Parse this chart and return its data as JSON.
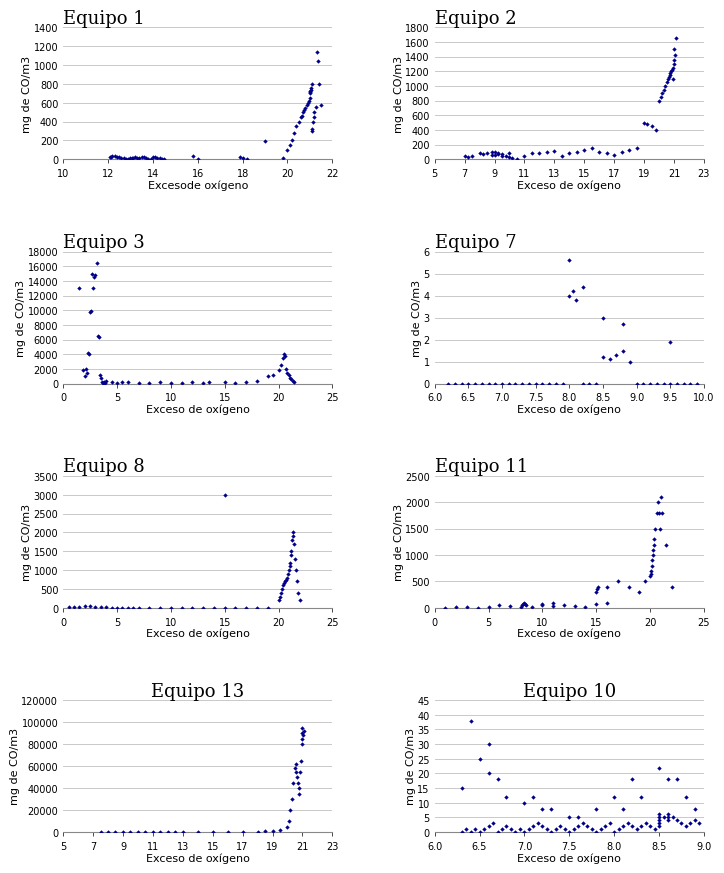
{
  "plots": [
    {
      "title": "Equipo 1",
      "title_loc": "left",
      "xlabel": "Excesode oxígeno",
      "ylabel": "mg de CO/m3",
      "xlim": [
        10,
        22
      ],
      "ylim": [
        0,
        1400
      ],
      "xticks": [
        10,
        12,
        14,
        16,
        18,
        20,
        22
      ],
      "yticks": [
        0,
        200,
        400,
        600,
        800,
        1000,
        1200,
        1400
      ],
      "x": [
        12.1,
        12.15,
        12.2,
        12.3,
        12.4,
        12.5,
        12.6,
        12.7,
        12.8,
        12.9,
        13.0,
        13.05,
        13.1,
        13.2,
        13.3,
        13.4,
        13.5,
        13.6,
        13.7,
        13.8,
        13.9,
        14.0,
        14.1,
        14.2,
        14.3,
        14.4,
        14.5,
        15.8,
        16.0,
        17.9,
        18.0,
        18.2,
        19.0,
        19.8,
        20.0,
        20.1,
        20.2,
        20.3,
        20.4,
        20.5,
        20.6,
        20.65,
        20.7,
        20.75,
        20.8,
        20.85,
        20.9,
        20.95,
        21.0,
        21.0,
        21.0,
        21.0,
        21.05,
        21.05,
        21.1,
        21.1,
        21.1,
        21.15,
        21.2,
        21.2,
        21.25,
        21.3,
        21.35,
        21.4,
        21.5
      ],
      "y": [
        30,
        25,
        40,
        35,
        25,
        20,
        15,
        10,
        5,
        8,
        12,
        10,
        18,
        22,
        16,
        14,
        20,
        25,
        10,
        8,
        5,
        30,
        25,
        15,
        10,
        8,
        6,
        40,
        5,
        20,
        10,
        5,
        190,
        10,
        100,
        150,
        200,
        280,
        350,
        400,
        450,
        460,
        500,
        520,
        550,
        580,
        600,
        620,
        650,
        700,
        720,
        730,
        740,
        760,
        800,
        300,
        320,
        400,
        450,
        500,
        560,
        1140,
        1040,
        800,
        580
      ]
    },
    {
      "title": "Equipo 2",
      "title_loc": "left",
      "xlabel": "Exceso de oxígeno",
      "ylabel": "mg de CO/m3",
      "xlim": [
        5,
        23
      ],
      "ylim": [
        0,
        1800
      ],
      "xticks": [
        5,
        7,
        9,
        11,
        13,
        15,
        17,
        19,
        21,
        23
      ],
      "yticks": [
        0,
        200,
        400,
        600,
        800,
        1000,
        1200,
        1400,
        1600,
        1800
      ],
      "x": [
        7.0,
        7.2,
        7.5,
        8.0,
        8.2,
        8.5,
        8.8,
        9.0,
        9.2,
        9.5,
        9.8,
        10.0,
        10.2,
        10.5,
        11.0,
        11.5,
        12.0,
        12.5,
        13.0,
        13.5,
        14.0,
        14.5,
        15.0,
        15.5,
        16.0,
        16.5,
        17.0,
        17.5,
        18.0,
        18.5,
        19.0,
        19.2,
        19.5,
        19.8,
        20.0,
        20.1,
        20.2,
        20.3,
        20.4,
        20.5,
        20.6,
        20.65,
        20.7,
        20.75,
        20.8,
        20.85,
        20.9,
        20.95,
        21.0,
        21.0,
        21.0,
        21.05,
        21.1,
        9.0,
        9.2,
        8.8,
        9.5,
        10.0
      ],
      "y": [
        40,
        30,
        50,
        80,
        70,
        90,
        100,
        60,
        70,
        50,
        40,
        30,
        20,
        10,
        50,
        80,
        90,
        100,
        120,
        50,
        80,
        100,
        130,
        150,
        100,
        80,
        60,
        100,
        130,
        150,
        500,
        480,
        450,
        400,
        800,
        850,
        900,
        950,
        1000,
        1050,
        1100,
        1130,
        1150,
        1180,
        1200,
        1220,
        1100,
        1250,
        1300,
        1350,
        1500,
        1420,
        1650,
        100,
        80,
        60,
        70,
        90
      ]
    },
    {
      "title": "Equipo 3",
      "title_loc": "left",
      "xlabel": "Exceso de oxígeno",
      "ylabel": "mg de CO/m3",
      "xlim": [
        0,
        25
      ],
      "ylim": [
        0,
        18000
      ],
      "xticks": [
        0,
        5,
        10,
        15,
        20,
        25
      ],
      "yticks": [
        0,
        2000,
        4000,
        6000,
        8000,
        10000,
        12000,
        14000,
        16000,
        18000
      ],
      "x": [
        1.5,
        1.8,
        2.0,
        2.1,
        2.2,
        2.3,
        2.4,
        2.5,
        2.6,
        2.7,
        2.8,
        2.9,
        3.0,
        3.1,
        3.2,
        3.3,
        3.4,
        3.5,
        3.6,
        3.7,
        3.8,
        3.9,
        4.0,
        4.5,
        5.0,
        5.5,
        6.0,
        7.0,
        8.0,
        9.0,
        10.0,
        11.0,
        12.0,
        13.0,
        13.5,
        15.0,
        16.0,
        17.0,
        18.0,
        19.0,
        19.5,
        20.0,
        20.2,
        20.4,
        20.5,
        20.6,
        20.7,
        20.8,
        21.0,
        21.1,
        21.2,
        21.3,
        21.4
      ],
      "y": [
        13000,
        1800,
        1000,
        2000,
        1500,
        4200,
        4100,
        9800,
        9900,
        15000,
        13000,
        14500,
        14800,
        16500,
        6500,
        6300,
        1200,
        800,
        200,
        100,
        200,
        100,
        300,
        200,
        100,
        200,
        150,
        100,
        100,
        200,
        50,
        100,
        200,
        100,
        200,
        200,
        100,
        200,
        300,
        1000,
        1200,
        1800,
        2500,
        3500,
        4000,
        3800,
        2000,
        1500,
        1200,
        800,
        600,
        400,
        200
      ]
    },
    {
      "title": "Equipo 7",
      "title_loc": "left",
      "xlabel": "Exceso de oxígeno",
      "ylabel": "mg de CO/m3",
      "xlim": [
        6,
        10
      ],
      "ylim": [
        0,
        6
      ],
      "xticks": [
        6,
        6.5,
        7,
        7.5,
        8,
        8.5,
        9,
        9.5,
        10
      ],
      "yticks": [
        0,
        1,
        2,
        3,
        4,
        5,
        6
      ],
      "x": [
        6.2,
        6.3,
        6.4,
        6.5,
        6.6,
        6.7,
        6.8,
        6.9,
        7.0,
        7.1,
        7.2,
        7.3,
        7.4,
        7.5,
        7.6,
        7.7,
        7.8,
        7.9,
        8.0,
        8.05,
        8.1,
        8.2,
        8.3,
        8.4,
        8.5,
        8.6,
        8.7,
        8.8,
        8.9,
        9.0,
        9.1,
        9.2,
        9.3,
        9.4,
        9.5,
        9.6,
        9.7,
        9.8,
        9.9,
        8.0,
        8.5,
        9.5,
        8.2,
        8.8
      ],
      "y": [
        0.0,
        0.0,
        0.0,
        0.0,
        0.0,
        0.0,
        0.0,
        0.0,
        0.0,
        0.0,
        0.0,
        0.0,
        0.0,
        0.0,
        0.0,
        0.0,
        0.0,
        0.0,
        4.0,
        4.2,
        3.8,
        0.0,
        0.0,
        0.0,
        1.2,
        1.1,
        1.3,
        1.5,
        1.0,
        0.0,
        0.0,
        0.0,
        0.0,
        0.0,
        0.0,
        0.0,
        0.0,
        0.0,
        0.0,
        5.6,
        3.0,
        1.9,
        4.4,
        2.7
      ]
    },
    {
      "title": "Equipo 8",
      "title_loc": "left",
      "xlabel": "Exceso de oxígeno",
      "ylabel": "mg de CO/m3",
      "xlim": [
        0,
        25
      ],
      "ylim": [
        0,
        3500
      ],
      "xticks": [
        0,
        5,
        10,
        15,
        20,
        25
      ],
      "yticks": [
        0,
        500,
        1000,
        1500,
        2000,
        2500,
        3000,
        3500
      ],
      "x": [
        0.5,
        1.0,
        1.5,
        2.0,
        2.5,
        3.0,
        3.5,
        4.0,
        4.5,
        5.0,
        5.5,
        6.0,
        6.5,
        7.0,
        8.0,
        9.0,
        10.0,
        11.0,
        12.0,
        13.0,
        14.0,
        15.0,
        16.0,
        17.0,
        18.0,
        19.0,
        20.0,
        20.1,
        20.2,
        20.3,
        20.4,
        20.5,
        20.6,
        20.7,
        20.8,
        20.9,
        21.0,
        21.05,
        21.1,
        21.15,
        21.2,
        21.25,
        21.3,
        21.35,
        21.4,
        21.5,
        21.6,
        21.7,
        21.8,
        22.0,
        15.0
      ],
      "y": [
        10,
        20,
        30,
        40,
        50,
        30,
        20,
        10,
        5,
        8,
        5,
        3,
        5,
        5,
        8,
        5,
        5,
        8,
        5,
        3,
        5,
        8,
        5,
        3,
        5,
        8,
        200,
        300,
        400,
        500,
        600,
        650,
        700,
        750,
        800,
        900,
        1000,
        1100,
        1200,
        1400,
        1500,
        1800,
        2000,
        1900,
        1700,
        1300,
        1000,
        700,
        400,
        200,
        3000
      ]
    },
    {
      "title": "Equipo 11",
      "title_loc": "left",
      "xlabel": "Exceso de oxígeno",
      "ylabel": "mg de CO/m3",
      "xlim": [
        0,
        25
      ],
      "ylim": [
        0,
        2500
      ],
      "xticks": [
        0,
        5,
        10,
        15,
        20,
        25
      ],
      "yticks": [
        0,
        500,
        1000,
        1500,
        2000,
        2500
      ],
      "x": [
        1.0,
        2.0,
        3.0,
        4.0,
        5.0,
        6.0,
        7.0,
        8.0,
        8.1,
        8.2,
        8.3,
        8.4,
        8.5,
        9.0,
        10.0,
        11.0,
        12.0,
        13.0,
        14.0,
        15.0,
        15.1,
        15.2,
        16.0,
        17.0,
        18.0,
        19.0,
        19.5,
        20.0,
        20.05,
        20.1,
        20.15,
        20.2,
        20.25,
        20.3,
        20.35,
        20.4,
        20.5,
        20.6,
        20.7,
        20.8,
        20.9,
        21.0,
        21.1,
        21.5,
        22.0,
        10.0,
        11.0,
        15.0,
        16.0
      ],
      "y": [
        5,
        10,
        8,
        5,
        10,
        50,
        30,
        20,
        50,
        80,
        100,
        80,
        60,
        10,
        80,
        100,
        50,
        30,
        20,
        300,
        350,
        400,
        400,
        500,
        400,
        300,
        500,
        600,
        650,
        700,
        800,
        900,
        1000,
        1100,
        1200,
        1300,
        1500,
        1800,
        2000,
        1800,
        1500,
        2100,
        1800,
        1200,
        400,
        60,
        40,
        80,
        100
      ]
    },
    {
      "title": "Equipo 13",
      "title_loc": "center",
      "xlabel": "Exceso de oxígeno",
      "ylabel": "mg de CO/m3",
      "xlim": [
        5,
        23
      ],
      "ylim": [
        0,
        120000
      ],
      "xticks": [
        5,
        7,
        9,
        11,
        13,
        15,
        17,
        19,
        21,
        23
      ],
      "yticks": [
        0,
        20000,
        40000,
        60000,
        80000,
        100000,
        120000
      ],
      "x": [
        7.5,
        8.0,
        8.5,
        9.0,
        9.5,
        10.0,
        10.5,
        11.0,
        11.5,
        12.0,
        12.5,
        13.0,
        14.0,
        15.0,
        16.0,
        17.0,
        18.0,
        18.5,
        19.0,
        19.5,
        20.0,
        20.1,
        20.2,
        20.3,
        20.4,
        20.5,
        20.55,
        20.6,
        20.65,
        20.7,
        20.75,
        20.8,
        20.85,
        20.9,
        20.95,
        21.0,
        21.0,
        21.0,
        21.05,
        21.1
      ],
      "y": [
        200,
        150,
        100,
        200,
        150,
        100,
        200,
        150,
        100,
        200,
        150,
        100,
        200,
        150,
        200,
        300,
        500,
        800,
        1000,
        2000,
        5000,
        10000,
        20000,
        30000,
        45000,
        58000,
        62000,
        55000,
        50000,
        45000,
        40000,
        35000,
        55000,
        65000,
        80000,
        95000,
        90000,
        85000,
        88000,
        92000
      ]
    },
    {
      "title": "Equipo 10",
      "title_loc": "center",
      "xlabel": "Exceso de oxígeno",
      "ylabel": "mg de CO/m3",
      "xlim": [
        6,
        9
      ],
      "ylim": [
        0,
        45
      ],
      "xticks": [
        6,
        6.5,
        7,
        7.5,
        8,
        8.5,
        9
      ],
      "yticks": [
        0,
        5,
        10,
        15,
        20,
        25,
        30,
        35,
        40,
        45
      ],
      "x": [
        6.3,
        6.35,
        6.4,
        6.45,
        6.5,
        6.55,
        6.6,
        6.65,
        6.7,
        6.75,
        6.8,
        6.85,
        6.9,
        6.95,
        7.0,
        7.05,
        7.1,
        7.15,
        7.2,
        7.25,
        7.3,
        7.35,
        7.4,
        7.45,
        7.5,
        7.55,
        7.6,
        7.65,
        7.7,
        7.75,
        7.8,
        7.85,
        7.9,
        7.95,
        8.0,
        8.05,
        8.1,
        8.15,
        8.2,
        8.25,
        8.3,
        8.35,
        8.4,
        8.45,
        8.5,
        8.5,
        8.5,
        8.5,
        8.5,
        8.55,
        8.6,
        8.6,
        8.6,
        8.65,
        8.7,
        8.75,
        8.8,
        8.85,
        8.9,
        8.95,
        6.3,
        6.5,
        6.6,
        6.7,
        6.8,
        7.0,
        7.2,
        7.5,
        7.8,
        8.0,
        8.2,
        8.5,
        8.7,
        8.8,
        8.9,
        6.4,
        6.6,
        7.1,
        7.3,
        7.6,
        8.1,
        8.3,
        8.6
      ],
      "y": [
        0,
        1,
        0,
        1,
        0,
        1,
        2,
        3,
        0,
        1,
        2,
        1,
        0,
        1,
        0,
        1,
        2,
        3,
        2,
        1,
        0,
        1,
        2,
        1,
        0,
        1,
        2,
        3,
        2,
        1,
        0,
        1,
        2,
        3,
        0,
        1,
        2,
        3,
        2,
        1,
        2,
        3,
        2,
        1,
        2,
        3,
        4,
        5,
        6,
        5,
        4,
        5,
        6,
        5,
        4,
        3,
        2,
        3,
        4,
        3,
        15,
        25,
        20,
        18,
        12,
        10,
        8,
        5,
        8,
        12,
        18,
        22,
        18,
        12,
        8,
        38,
        30,
        12,
        8,
        5,
        8,
        12,
        18
      ]
    }
  ],
  "marker_color": "#00008B",
  "marker_size": 5,
  "title_fontsize": 13,
  "label_fontsize": 8,
  "tick_fontsize": 7,
  "grid_color": "#c0c0c0",
  "background_color": "#ffffff"
}
